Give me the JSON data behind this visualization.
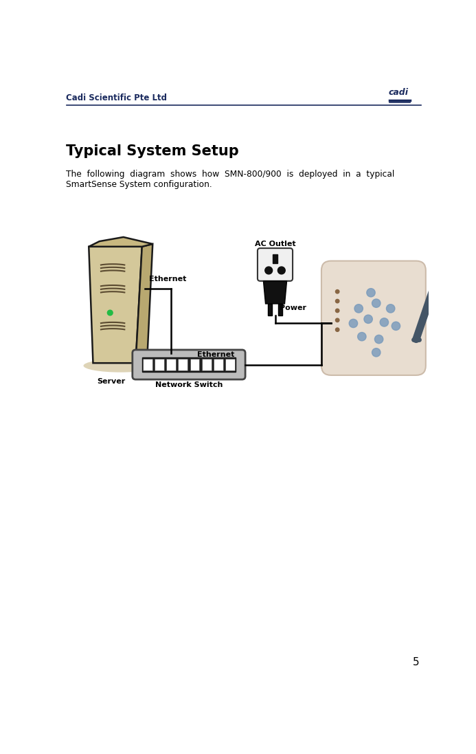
{
  "page_title": "Cadi Scientific Pte Ltd",
  "section_title": "Typical System Setup",
  "body_text_line1": "The  following  diagram  shows  how  SMN-800/900  is  deployed  in  a  typical",
  "body_text_line2": "SmartSense System configuration.",
  "page_number": "5",
  "bg_color": "#ffffff",
  "header_color": "#1a2a5e",
  "text_color": "#000000",
  "label_server": "Server",
  "label_network_switch": "Network Switch",
  "label_ac_outlet": "AC Outlet",
  "label_power": "Power",
  "label_ethernet1": "Ethernet",
  "label_ethernet2": "Ethernet",
  "server_body_color": "#d4c89a",
  "server_top_color": "#c8b880",
  "server_side_color": "#b8a870",
  "server_shadow_color": "#b0a070",
  "switch_body_color": "#bbbbbb",
  "switch_port_color": "#111111",
  "device_body_color": "#e8ddd0",
  "device_dot_color": "#7799bb",
  "device_led_color": "#884422",
  "antenna_color": "#445566",
  "outlet_body_color": "#f0f0f0",
  "plug_color": "#111111",
  "line_color": "#000000"
}
